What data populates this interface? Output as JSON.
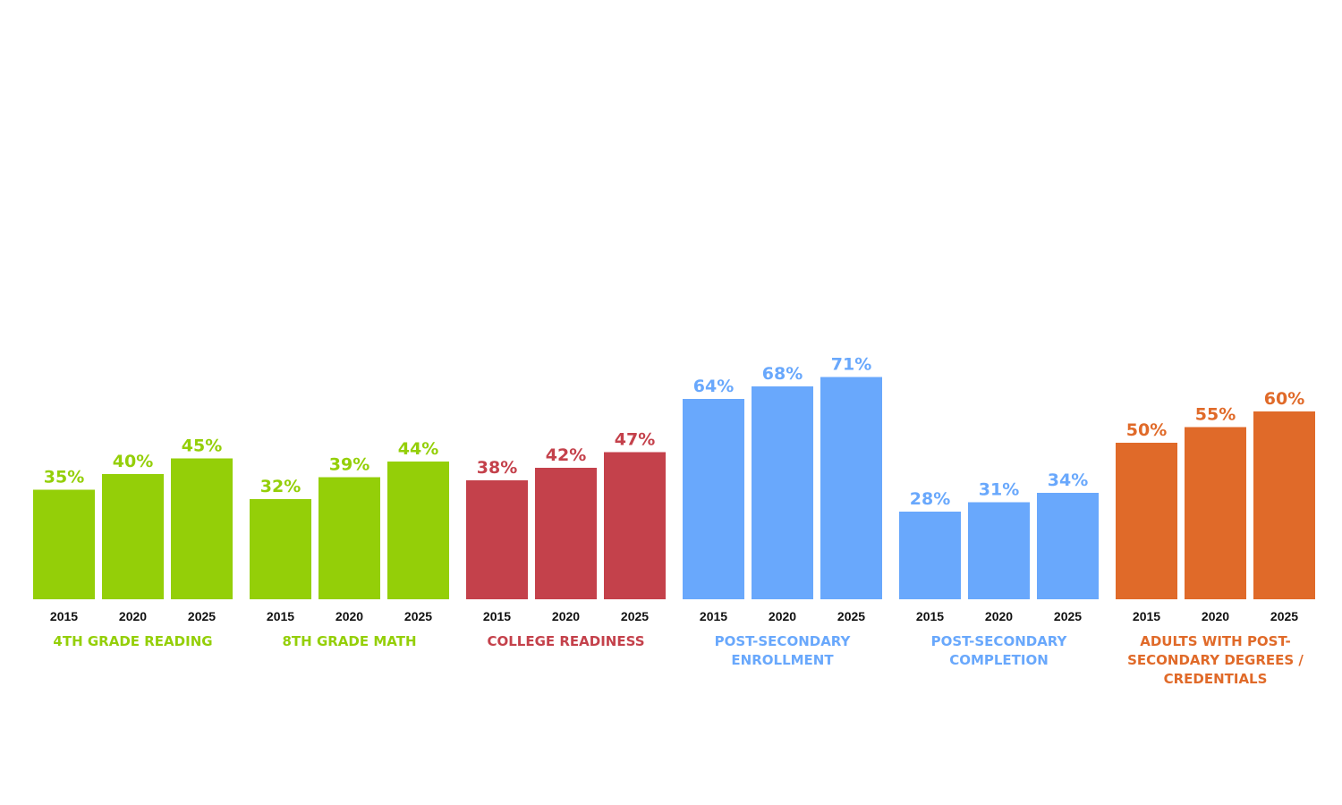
{
  "chart_data": {
    "type": "bar",
    "years": [
      "2015",
      "2020",
      "2025"
    ],
    "ylim": [
      0,
      100
    ],
    "groups": [
      {
        "label_lines": [
          "4TH GRADE READING"
        ],
        "color": "#94cf08",
        "values": [
          35,
          40,
          45
        ],
        "value_labels": [
          "35%",
          "40%",
          "45%"
        ]
      },
      {
        "label_lines": [
          "8TH GRADE MATH"
        ],
        "color": "#94cf08",
        "values": [
          32,
          39,
          44
        ],
        "value_labels": [
          "32%",
          "39%",
          "44%"
        ]
      },
      {
        "label_lines": [
          "COLLEGE READINESS"
        ],
        "color": "#c4414b",
        "values": [
          38,
          42,
          47
        ],
        "value_labels": [
          "38%",
          "42%",
          "47%"
        ]
      },
      {
        "label_lines": [
          "POST-SECONDARY",
          "ENROLLMENT"
        ],
        "color": "#69a8fc",
        "values": [
          64,
          68,
          71
        ],
        "value_labels": [
          "64%",
          "68%",
          "71%"
        ]
      },
      {
        "label_lines": [
          "POST-SECONDARY",
          "COMPLETION"
        ],
        "color": "#69a8fc",
        "values": [
          28,
          31,
          34
        ],
        "value_labels": [
          "28%",
          "31%",
          "34%"
        ]
      },
      {
        "label_lines": [
          "ADULTS WITH POST-",
          "SECONDARY DEGREES /",
          "CREDENTIALS"
        ],
        "color": "#e06a29",
        "values": [
          50,
          55,
          60
        ],
        "value_labels": [
          "50%",
          "55%",
          "60%"
        ]
      }
    ]
  }
}
